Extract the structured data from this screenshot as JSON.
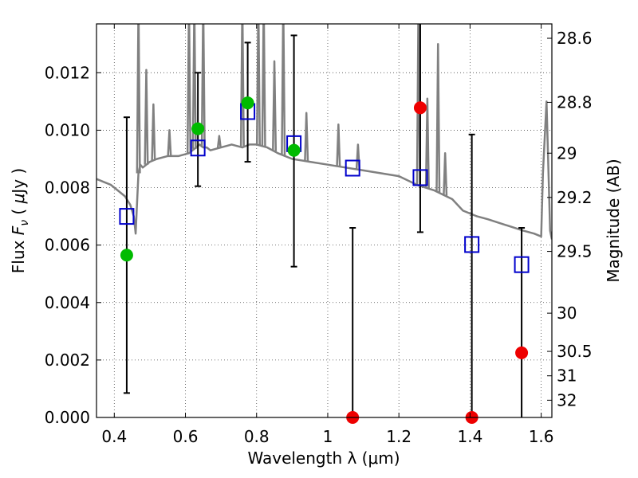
{
  "chart_data": {
    "type": "scatter",
    "xlabel": "Wavelength  λ (μm)",
    "ylabel_left": "Flux  F_ν  ( μJy )",
    "ylabel_left_parts": {
      "prefix": "Flux  ",
      "symbol": "F",
      "subscript": "ν",
      "suffix_open": "  ( ",
      "mu": "μ",
      "unit": "Jy )"
    },
    "ylabel_right": "Magnitude (AB)",
    "xlim": [
      0.35,
      1.63
    ],
    "ylim": [
      0.0,
      0.0137
    ],
    "grid": true,
    "x_ticks": [
      0.4,
      0.6,
      0.8,
      1.0,
      1.2,
      1.4,
      1.6
    ],
    "x_tick_labels": [
      "0.4",
      "0.6",
      "0.8",
      "1",
      "1.2",
      "1.4",
      "1.6"
    ],
    "y_ticks": [
      0.0,
      0.002,
      0.004,
      0.006,
      0.008,
      0.01,
      0.012
    ],
    "y_tick_labels": [
      "0.000",
      "0.002",
      "0.004",
      "0.006",
      "0.008",
      "0.010",
      "0.012"
    ],
    "right_ticks": [
      {
        "flux": 0.0132,
        "label": "28.6"
      },
      {
        "flux": 0.01097,
        "label": "28.8"
      },
      {
        "flux": 0.0092,
        "label": "29"
      },
      {
        "flux": 0.00766,
        "label": "29.2"
      },
      {
        "flux": 0.00578,
        "label": "29.5"
      },
      {
        "flux": 0.00363,
        "label": "30"
      },
      {
        "flux": 0.0023,
        "label": "30.5"
      },
      {
        "flux": 0.00145,
        "label": "31"
      },
      {
        "flux": 0.0006,
        "label": "32"
      }
    ],
    "series": [
      {
        "marker": "square-open",
        "color": "#0000cc",
        "x": [
          0.435,
          0.635,
          0.775,
          0.905,
          1.07,
          1.26,
          1.405,
          1.545
        ],
        "y": [
          0.007,
          0.00938,
          0.01065,
          0.00953,
          0.00868,
          0.00835,
          0.00602,
          0.00532
        ]
      },
      {
        "marker": "circle",
        "color": "#00bb00",
        "x": [
          0.435,
          0.635,
          0.775,
          0.905
        ],
        "y": [
          0.00565,
          0.01005,
          0.01095,
          0.0093
        ]
      },
      {
        "marker": "circle",
        "color": "#ee0000",
        "x": [
          1.26,
          1.545,
          1.07,
          1.405
        ],
        "y": [
          0.01078,
          0.00225,
          0.0,
          0.0
        ]
      }
    ],
    "error_bars": {
      "color": "#000000",
      "points": [
        {
          "x": 0.435,
          "low": 0.00085,
          "high": 0.01045
        },
        {
          "x": 0.635,
          "low": 0.00805,
          "high": 0.012
        },
        {
          "x": 0.775,
          "low": 0.0089,
          "high": 0.01305
        },
        {
          "x": 0.905,
          "low": 0.00525,
          "high": 0.0133
        },
        {
          "x": 1.07,
          "low": 0.0,
          "high": 0.0066
        },
        {
          "x": 1.26,
          "low": 0.00645,
          "high": 0.0137
        },
        {
          "x": 1.405,
          "low": 0.0,
          "high": 0.00985
        },
        {
          "x": 1.545,
          "low": 0.0,
          "high": 0.0066
        }
      ]
    },
    "sed_model": {
      "color": "#808080",
      "x": [
        0.35,
        0.37,
        0.39,
        0.41,
        0.43,
        0.445,
        0.455,
        0.46,
        0.463,
        0.468,
        0.473,
        0.48,
        0.5,
        0.52,
        0.55,
        0.58,
        0.61,
        0.62,
        0.63,
        0.64,
        0.65,
        0.66,
        0.67,
        0.7,
        0.73,
        0.76,
        0.78,
        0.8,
        0.83,
        0.86,
        0.9,
        0.95,
        1.0,
        1.05,
        1.1,
        1.15,
        1.2,
        1.25,
        1.3,
        1.35,
        1.38,
        1.4,
        1.42,
        1.45,
        1.5,
        1.55,
        1.58,
        1.6,
        1.605,
        1.615,
        1.625,
        1.63
      ],
      "y": [
        0.0083,
        0.0082,
        0.0081,
        0.0079,
        0.0077,
        0.0074,
        0.007,
        0.0064,
        0.0072,
        0.0085,
        0.0088,
        0.0087,
        0.0089,
        0.009,
        0.0091,
        0.0091,
        0.0092,
        0.0093,
        0.0094,
        0.0095,
        0.0094,
        0.0094,
        0.0093,
        0.0094,
        0.0095,
        0.0094,
        0.0095,
        0.0095,
        0.0094,
        0.0092,
        0.009,
        0.0089,
        0.0088,
        0.0087,
        0.0086,
        0.0085,
        0.0084,
        0.0081,
        0.0079,
        0.0076,
        0.0072,
        0.0071,
        0.007,
        0.0069,
        0.0067,
        0.0065,
        0.0064,
        0.0063,
        0.0085,
        0.011,
        0.0065,
        0.0062
      ]
    },
    "sed_emission_lines": [
      {
        "x": 0.468,
        "peak": 0.0145
      },
      {
        "x": 0.49,
        "peak": 0.0121
      },
      {
        "x": 0.51,
        "peak": 0.0109
      },
      {
        "x": 0.555,
        "peak": 0.01
      },
      {
        "x": 0.61,
        "peak": 0.0145
      },
      {
        "x": 0.625,
        "peak": 0.0145
      },
      {
        "x": 0.65,
        "peak": 0.0145
      },
      {
        "x": 0.695,
        "peak": 0.0098
      },
      {
        "x": 0.76,
        "peak": 0.0145
      },
      {
        "x": 0.805,
        "peak": 0.0145
      },
      {
        "x": 0.82,
        "peak": 0.0145
      },
      {
        "x": 0.85,
        "peak": 0.0124
      },
      {
        "x": 0.875,
        "peak": 0.0145
      },
      {
        "x": 0.94,
        "peak": 0.0106
      },
      {
        "x": 1.03,
        "peak": 0.0102
      },
      {
        "x": 1.085,
        "peak": 0.0095
      },
      {
        "x": 1.255,
        "peak": 0.0145
      },
      {
        "x": 1.28,
        "peak": 0.0111
      },
      {
        "x": 1.31,
        "peak": 0.013
      },
      {
        "x": 1.33,
        "peak": 0.0092
      }
    ]
  }
}
